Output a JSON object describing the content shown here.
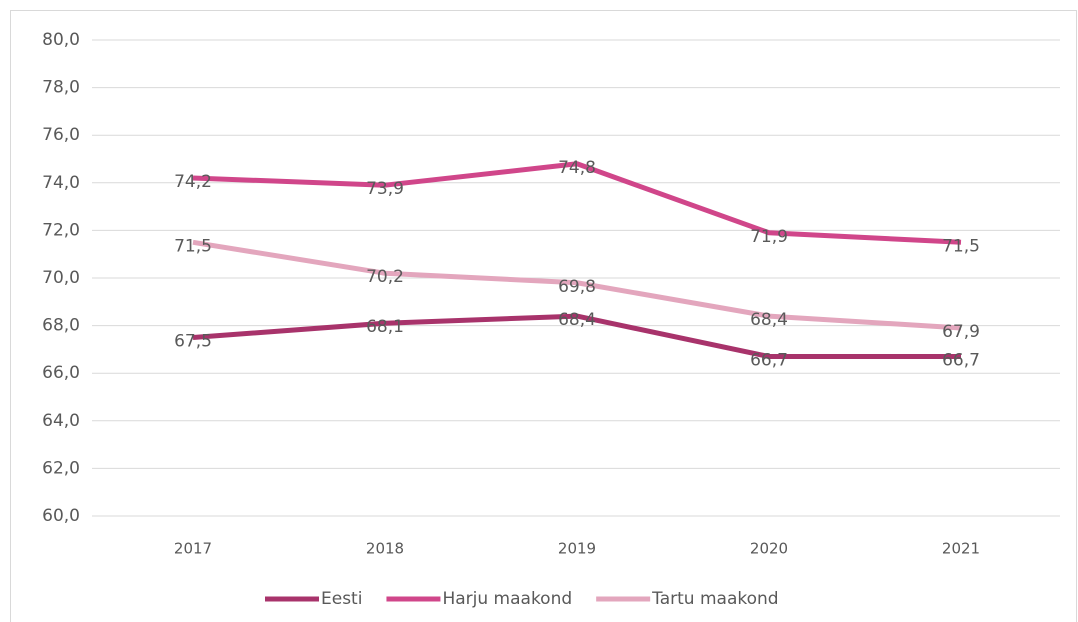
{
  "chart_data": {
    "type": "line",
    "categories": [
      "2017",
      "2018",
      "2019",
      "2020",
      "2021"
    ],
    "series": [
      {
        "name": "Eesti",
        "color": "#a8336b",
        "values": [
          67.5,
          68.1,
          68.4,
          66.7,
          66.7
        ],
        "value_labels": [
          "67,5",
          "68,1",
          "68,4",
          "66,7",
          "66,7"
        ]
      },
      {
        "name": "Harju maakond",
        "color": "#d0468a",
        "values": [
          74.2,
          73.9,
          74.8,
          71.9,
          71.5
        ],
        "value_labels": [
          "74,2",
          "73,9",
          "74,8",
          "71,9",
          "71,5"
        ]
      },
      {
        "name": "Tartu maakond",
        "color": "#e3a6bd",
        "values": [
          71.5,
          70.2,
          69.8,
          68.4,
          67.9
        ],
        "value_labels": [
          "71,5",
          "70,2",
          "69,8",
          "68,4",
          "67,9"
        ]
      }
    ],
    "ylim": [
      60,
      80
    ],
    "yticks": [
      {
        "value": 60,
        "label": "60,0"
      },
      {
        "value": 62,
        "label": "62,0"
      },
      {
        "value": 64,
        "label": "64,0"
      },
      {
        "value": 66,
        "label": "66,0"
      },
      {
        "value": 68,
        "label": "68,0"
      },
      {
        "value": 70,
        "label": "70,0"
      },
      {
        "value": 72,
        "label": "72,0"
      },
      {
        "value": 74,
        "label": "74,0"
      },
      {
        "value": 76,
        "label": "76,0"
      },
      {
        "value": 78,
        "label": "78,0"
      },
      {
        "value": 80,
        "label": "80,0"
      }
    ],
    "grid": true,
    "legend": "bottom"
  }
}
